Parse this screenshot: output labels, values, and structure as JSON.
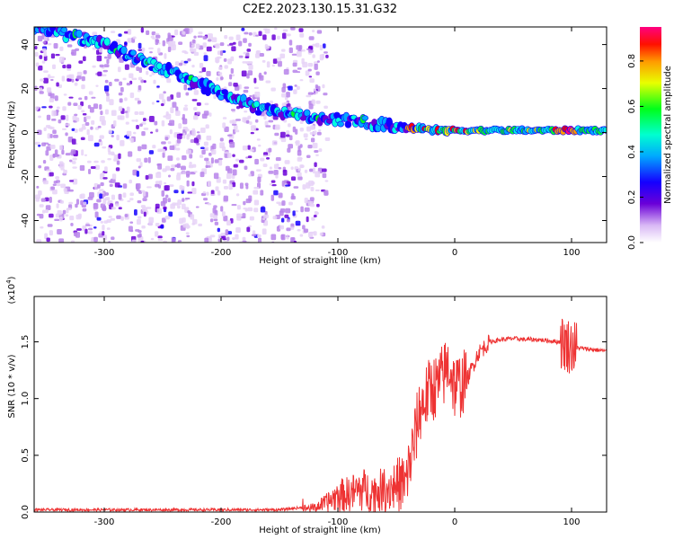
{
  "title": "C2E2.2023.130.15.31.G32",
  "chart_data": [
    {
      "type": "heatmap",
      "xlabel": "Height of straight line (km)",
      "ylabel": "Frequency (Hz)",
      "xlim": [
        -360,
        130
      ],
      "ylim": [
        -50,
        48
      ],
      "x_ticks": [
        -300,
        -200,
        -100,
        0,
        100
      ],
      "y_ticks": [
        -40,
        -20,
        0,
        20,
        40
      ],
      "colorbar": {
        "label": "Normalized spectral amplitude",
        "range": [
          0,
          0.95
        ],
        "ticks": [
          0.0,
          0.2,
          0.4,
          0.6,
          0.8
        ]
      },
      "features": {
        "chirp_track": [
          [
            -350,
            47
          ],
          [
            -300,
            40
          ],
          [
            -250,
            29
          ],
          [
            -200,
            18
          ],
          [
            -170,
            11
          ],
          [
            -130,
            8
          ],
          [
            -100,
            6
          ],
          [
            -50,
            3
          ],
          [
            -20,
            1
          ],
          [
            0,
            1
          ],
          [
            50,
            1
          ],
          [
            130,
            1
          ]
        ],
        "steady_line_frequency": 1,
        "noise_extent_x": [
          -360,
          -110
        ],
        "colors": [
          "#ffffff",
          "#e6d2f7",
          "#b784ea",
          "#6a00d8",
          "#1300ff",
          "#00a8ff",
          "#00ffe0",
          "#00ff2a",
          "#f0ff00",
          "#ff9a00",
          "#ff0000",
          "#ff0080"
        ]
      },
      "grid": false,
      "legend": "colorbar-right"
    },
    {
      "type": "line",
      "xlabel": "Height of straight line (km)",
      "ylabel": "SNR (10 * v/v)",
      "y_multiplier": "(x10",
      "y_multiplier_exp": "4",
      "xlim": [
        -360,
        130
      ],
      "ylim": [
        0,
        1.9
      ],
      "x_ticks": [
        -300,
        -200,
        -100,
        0,
        100
      ],
      "y_ticks": [
        0.0,
        0.5,
        1.0,
        1.5
      ],
      "y_tick_labels": [
        "0.0",
        "0.5",
        "1.0",
        "1.5"
      ],
      "series": [
        {
          "color": "#ee3333",
          "x": [
            -360,
            -300,
            -200,
            -150,
            -120,
            -110,
            -100,
            -90,
            -80,
            -70,
            -60,
            -50,
            -40,
            -35,
            -30,
            -25,
            -20,
            -15,
            -10,
            -5,
            0,
            10,
            20,
            30,
            40,
            50,
            60,
            70,
            80,
            90,
            95,
            100,
            105,
            110,
            120,
            130
          ],
          "values": [
            0.02,
            0.02,
            0.02,
            0.02,
            0.05,
            0.1,
            0.18,
            0.2,
            0.25,
            0.22,
            0.25,
            0.3,
            0.35,
            0.6,
            0.9,
            1.0,
            1.1,
            1.1,
            1.2,
            1.3,
            1.1,
            1.15,
            1.4,
            1.5,
            1.52,
            1.53,
            1.52,
            1.52,
            1.51,
            1.5,
            1.48,
            1.46,
            1.45,
            1.44,
            1.43,
            1.42
          ]
        }
      ],
      "grid": false
    }
  ]
}
